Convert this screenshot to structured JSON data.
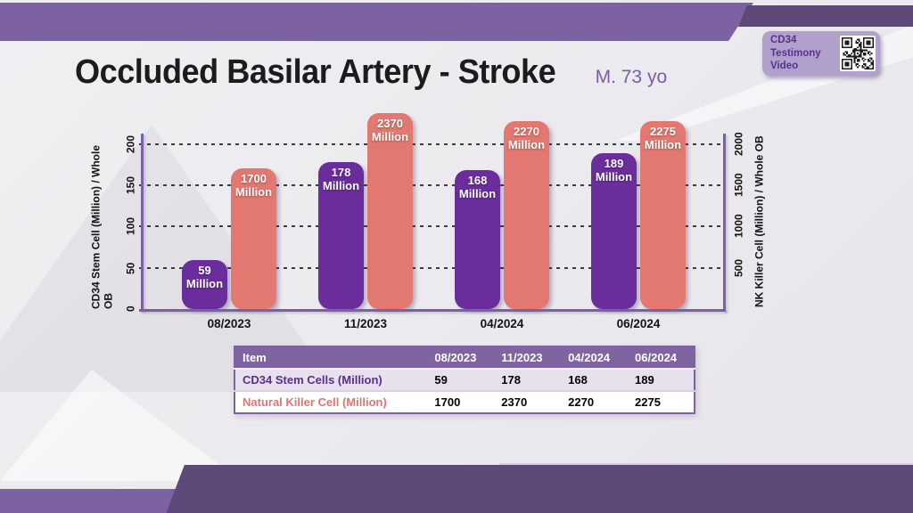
{
  "slide": {
    "title": "Occluded Basilar Artery - Stroke",
    "patient": "M. 73 yo"
  },
  "badge": {
    "label": "CD34 Testimony Video"
  },
  "chart_data": {
    "type": "bar",
    "categories": [
      "08/2023",
      "11/2023",
      "04/2024",
      "06/2024"
    ],
    "series": [
      {
        "name": "CD34 Stem Cells (Million)",
        "axis": "left",
        "color": "#6a2d9b",
        "unit": "Million",
        "values": [
          59,
          178,
          168,
          189
        ]
      },
      {
        "name": "Natural Killer Cell (Million)",
        "axis": "right",
        "color": "#e2786f",
        "unit": "Million",
        "values": [
          1700,
          2370,
          2270,
          2275
        ]
      }
    ],
    "left_axis": {
      "title": "CD34 Stem Cell (Million) / Whole OB",
      "ticks": [
        0,
        50,
        100,
        150,
        200
      ],
      "range": [
        0,
        215
      ]
    },
    "right_axis": {
      "title": "NK Killer Cell (Million) / Whole OB",
      "ticks": [
        500,
        1000,
        1500,
        2000
      ],
      "range": [
        0,
        2150
      ]
    },
    "grid": {
      "style": "dashed",
      "orientation": "horizontal",
      "at_left_values": [
        50,
        100,
        150,
        200
      ]
    },
    "legend_position": "none"
  },
  "table": {
    "headers": [
      "Item",
      "08/2023",
      "11/2023",
      "04/2024",
      "06/2024"
    ],
    "rows": [
      {
        "label": "CD34 Stem Cells (Million)",
        "values": [
          "59",
          "178",
          "168",
          "189"
        ]
      },
      {
        "label": "Natural Killer Cell (Million)",
        "values": [
          "1700",
          "2370",
          "2270",
          "2275"
        ]
      }
    ]
  },
  "colors": {
    "banner_purple": "#7c62a3",
    "banner_dark_purple": "#5d4878",
    "bar_purple": "#6a2d9b",
    "bar_salmon": "#e2786f",
    "table_header_purple": "#8064a2",
    "table_row_alt": "#e7e1ee",
    "badge_background": "#b1a0cb",
    "badge_text": "#5b2f90",
    "axis_purple": "#7d5fa8"
  }
}
